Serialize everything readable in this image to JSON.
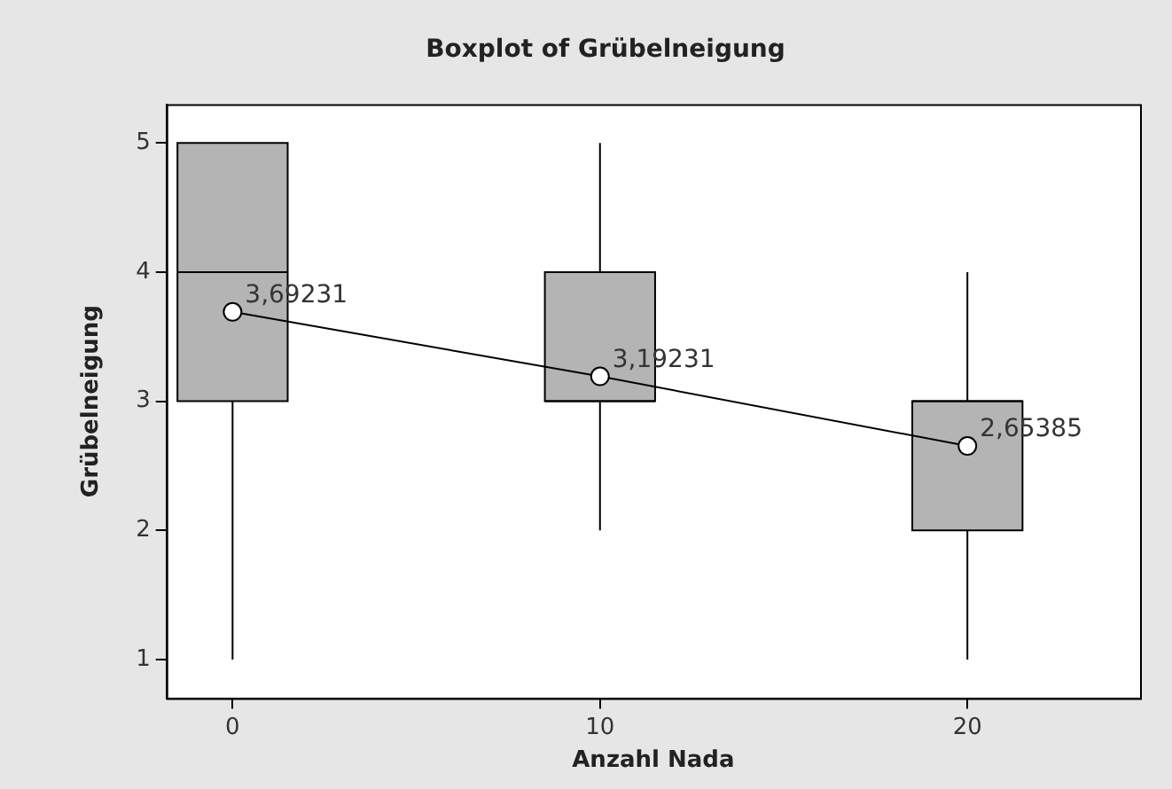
{
  "chart_data": {
    "type": "box",
    "title": "Boxplot of Grübelneigung",
    "xlabel": "Anzahl Nada",
    "ylabel": "Grübelneigung",
    "categories": [
      "0",
      "10",
      "20"
    ],
    "ylim": [
      0.7,
      5.3
    ],
    "yticks": [
      1,
      2,
      3,
      4,
      5
    ],
    "grid": false,
    "legend": false,
    "series": [
      {
        "type": "box",
        "color": "#b4b4b4",
        "boxes": [
          {
            "low": 1,
            "q1": 3,
            "median": 4,
            "q3": 5,
            "high": 5
          },
          {
            "low": 2,
            "q1": 3,
            "median": 3,
            "q3": 4,
            "high": 5
          },
          {
            "low": 1,
            "q1": 2,
            "median": 3,
            "q3": 3,
            "high": 4
          }
        ]
      },
      {
        "type": "line",
        "color": "#000000",
        "x": [
          "0",
          "10",
          "20"
        ],
        "values": [
          3.69231,
          3.19231,
          2.65385
        ],
        "value_labels": [
          "3,69231",
          "3,19231",
          "2,65385"
        ],
        "marker": "circle",
        "line_style": "solid"
      }
    ]
  }
}
